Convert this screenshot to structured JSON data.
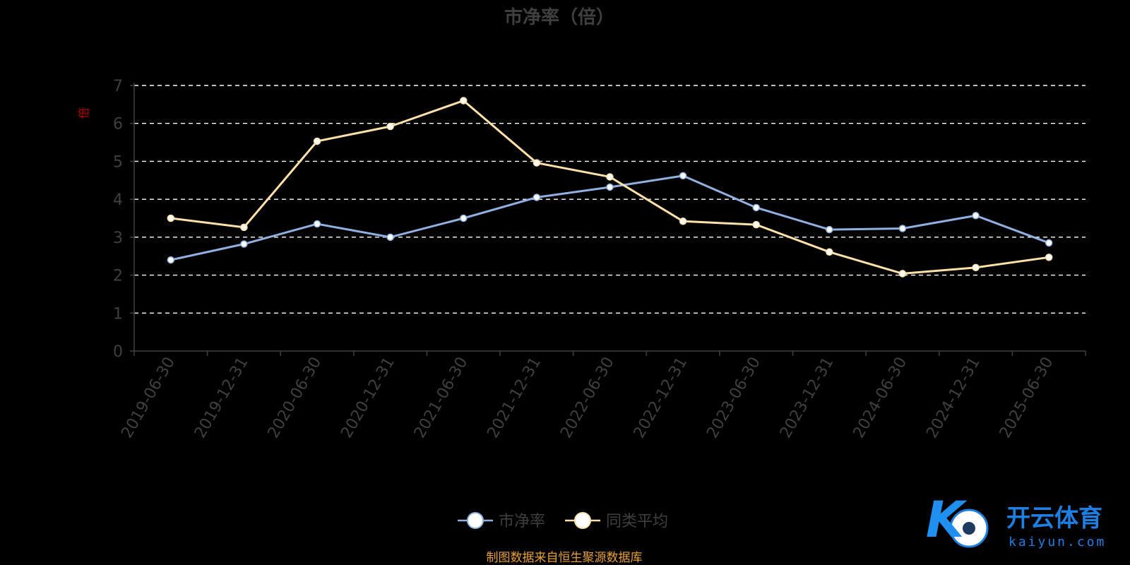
{
  "chart_data": {
    "type": "line",
    "title": "市净率（倍）",
    "ylabel": "倍",
    "ylim": [
      0,
      7
    ],
    "yticks": [
      0,
      1,
      2,
      3,
      4,
      5,
      6,
      7
    ],
    "grid": true,
    "legend_position": "bottom-center",
    "categories": [
      "2019-06-30",
      "2019-12-31",
      "2020-06-30",
      "2020-12-31",
      "2021-06-30",
      "2021-12-31",
      "2022-06-30",
      "2022-12-31",
      "2023-06-30",
      "2023-12-31",
      "2024-06-30",
      "2024-12-31",
      "2025-06-30"
    ],
    "series": [
      {
        "name": "市净率",
        "color": "#8fb0e0",
        "values": [
          2.4,
          2.82,
          3.35,
          3.0,
          3.5,
          4.05,
          4.32,
          4.62,
          3.78,
          3.2,
          3.23,
          3.57,
          2.85
        ]
      },
      {
        "name": "同类平均",
        "color": "#fde1a8",
        "values": [
          3.5,
          3.26,
          5.53,
          5.92,
          6.6,
          4.96,
          4.59,
          3.42,
          3.33,
          2.61,
          2.04,
          2.2,
          2.47
        ]
      }
    ]
  },
  "source_note": "制图数据来自恒生聚源数据库",
  "watermark": {
    "logo_letter": "K",
    "brand": "开云体育",
    "domain": "kaiyun.com"
  }
}
